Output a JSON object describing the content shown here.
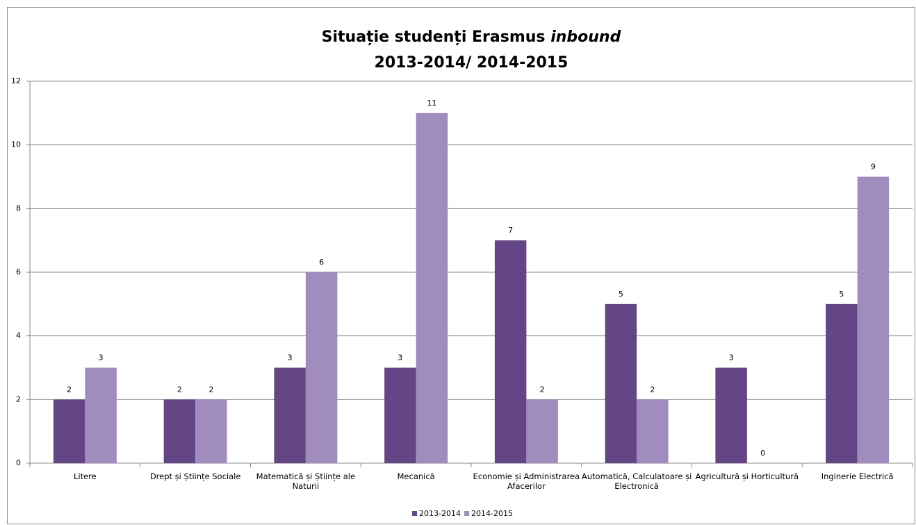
{
  "chart_data": {
    "type": "bar",
    "title": {
      "line1": "Situație studenți Erasmus",
      "emphasis": "inbound",
      "line2": "2013-2014/ 2014-2015"
    },
    "categories": [
      "Litere",
      "Drept și Științe Sociale",
      "Matematică și Științe ale Naturii",
      "Mecanică",
      "Economie și Administrarea Afacerilor",
      "Automatică, Calculatoare și Electronică",
      "Agricultură și Horticultură",
      "Inginerie Electrică"
    ],
    "series": [
      {
        "name": "2013-2014",
        "color": "#644686",
        "values": [
          2,
          2,
          3,
          3,
          7,
          5,
          3,
          5
        ]
      },
      {
        "name": "2014-2015",
        "color": "#a08dbd",
        "values": [
          3,
          2,
          6,
          11,
          2,
          2,
          0,
          9
        ]
      }
    ],
    "ylim": [
      0,
      12
    ],
    "yticks": [
      0,
      2,
      4,
      6,
      8,
      10,
      12
    ],
    "grid": true,
    "legend": "bottom"
  }
}
